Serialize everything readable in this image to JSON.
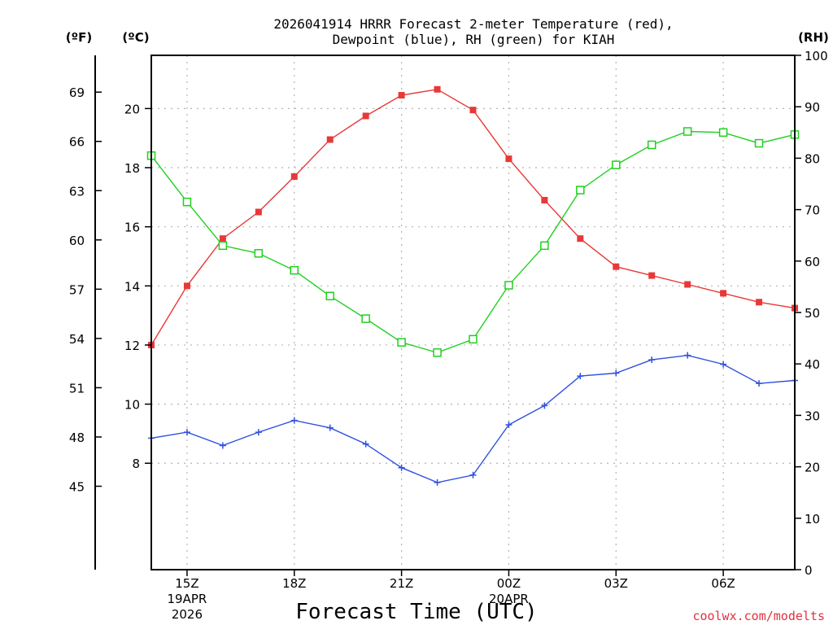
{
  "chart_data": {
    "type": "line",
    "title_lines": [
      "2026041914 HRRR Forecast 2-meter Temperature (red),",
      "Dewpoint (blue), RH (green) for KIAH"
    ],
    "xlabel": "Forecast Time (UTC)",
    "credit": "coolwx.com/modelts",
    "units": {
      "f": "(ºF)",
      "c": "(ºC)",
      "rh": "(RH)"
    },
    "x_hours": [
      0,
      1,
      2,
      3,
      4,
      5,
      6,
      7,
      8,
      9,
      10,
      11,
      12,
      13,
      14,
      15,
      16,
      17,
      18
    ],
    "x_ticks": [
      {
        "hour": 1,
        "label": "15Z",
        "date": "19APR",
        "year": "2026"
      },
      {
        "hour": 4,
        "label": "18Z"
      },
      {
        "hour": 7,
        "label": "21Z"
      },
      {
        "hour": 10,
        "label": "00Z",
        "date": "20APR"
      },
      {
        "hour": 13,
        "label": "03Z"
      },
      {
        "hour": 16,
        "label": "06Z"
      }
    ],
    "xlim": [
      0,
      18
    ],
    "ylim_c": [
      4.4,
      21.8
    ],
    "ylim_rh": [
      0,
      100
    ],
    "yticks_c": [
      "8",
      "10",
      "12",
      "14",
      "16",
      "18",
      "20"
    ],
    "yticks_f": [
      "45",
      "48",
      "51",
      "54",
      "57",
      "60",
      "63",
      "66",
      "69"
    ],
    "yticks_rh": [
      "0",
      "10",
      "20",
      "30",
      "40",
      "50",
      "60",
      "70",
      "80",
      "90",
      "100"
    ],
    "series": [
      {
        "name": "Temperature",
        "unit": "C",
        "color": "#e83838",
        "marker": "filled-square",
        "values": [
          12.0,
          14.0,
          15.6,
          16.5,
          17.7,
          18.95,
          19.75,
          20.45,
          20.65,
          19.95,
          18.3,
          16.9,
          15.6,
          14.65,
          14.35,
          14.05,
          13.75,
          13.45,
          13.25
        ]
      },
      {
        "name": "Dewpoint",
        "unit": "C",
        "color": "#3050e0",
        "marker": "plus",
        "values": [
          8.85,
          9.05,
          8.6,
          9.05,
          9.45,
          9.2,
          8.65,
          7.85,
          7.35,
          7.6,
          9.3,
          9.95,
          10.95,
          11.05,
          11.5,
          11.65,
          11.35,
          10.7,
          10.8
        ]
      },
      {
        "name": "RH",
        "unit": "%",
        "color": "#20d020",
        "marker": "open-square",
        "values": [
          80.5,
          71.5,
          63.0,
          61.5,
          58.2,
          53.2,
          48.8,
          44.2,
          42.2,
          44.8,
          55.3,
          63.0,
          73.8,
          78.7,
          82.6,
          85.2,
          85.0,
          82.9,
          84.6
        ]
      }
    ]
  }
}
